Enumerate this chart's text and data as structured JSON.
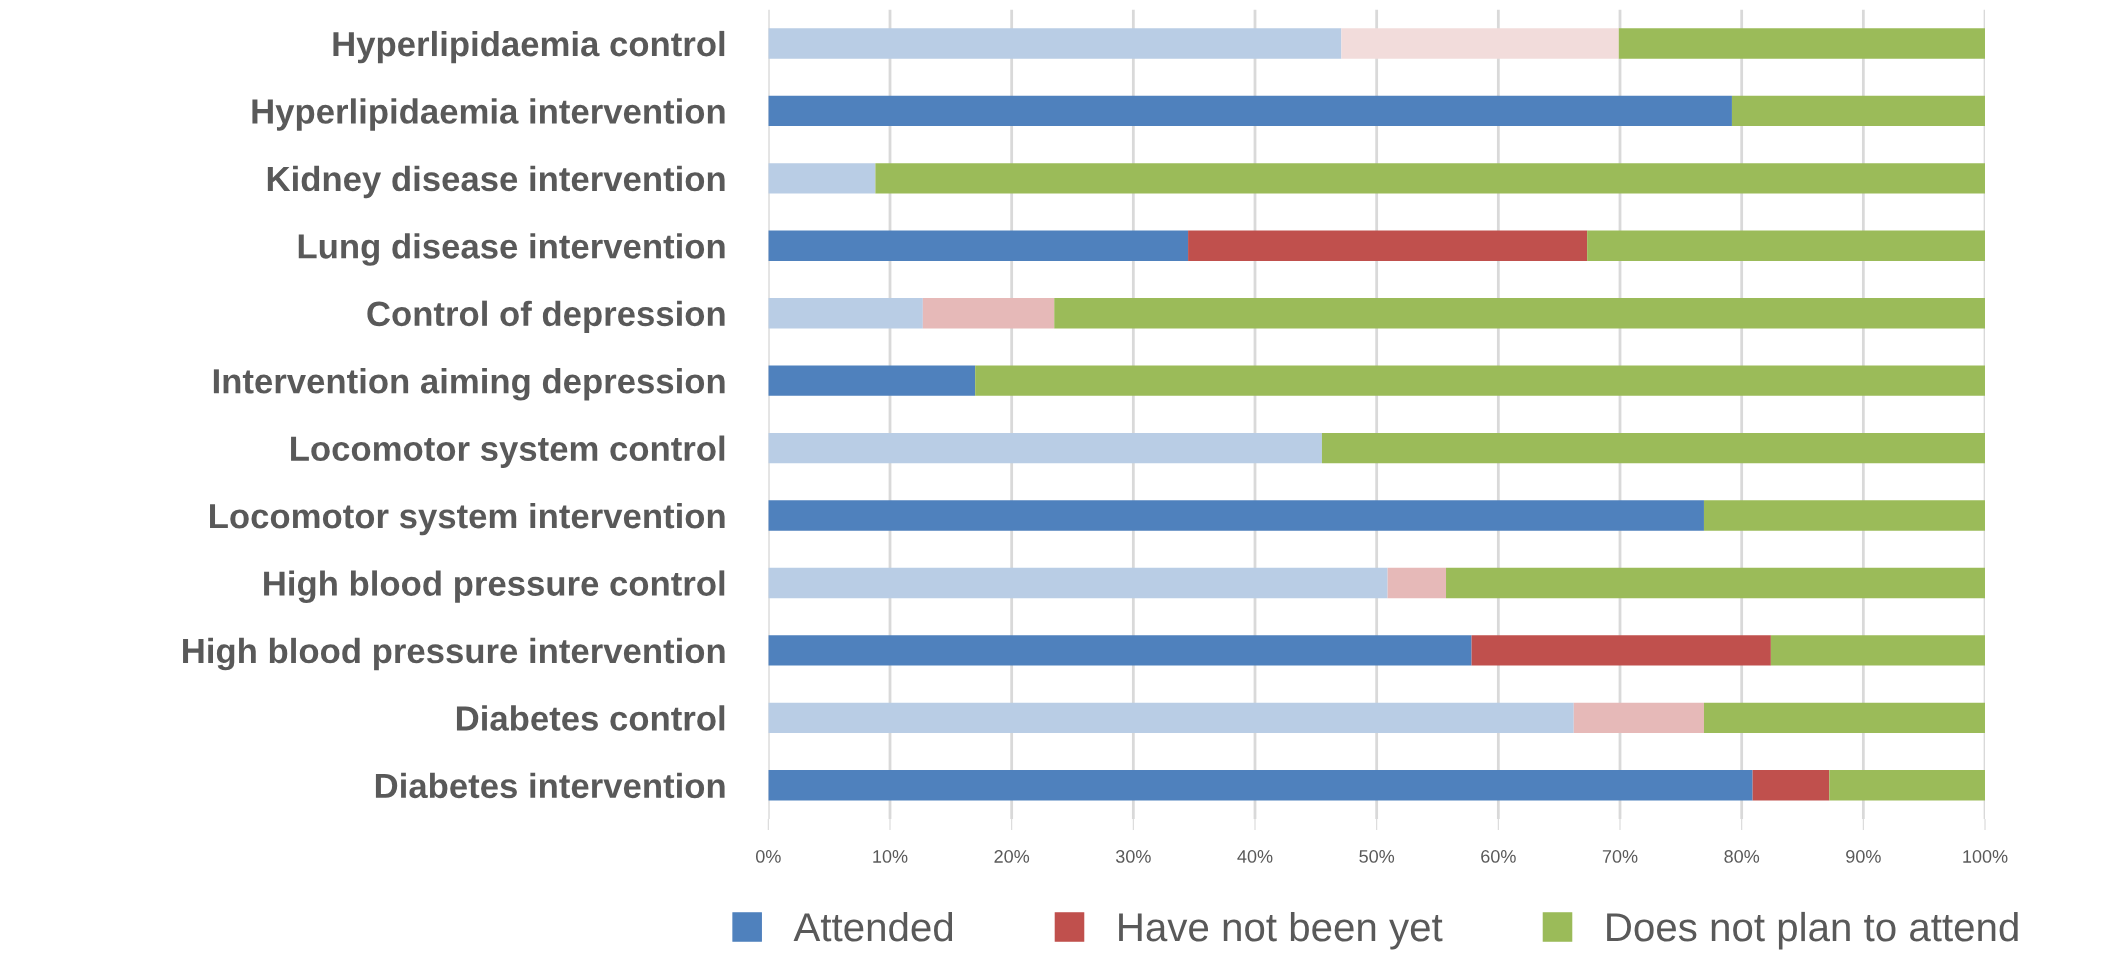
{
  "chart_data": {
    "type": "bar",
    "orientation": "horizontal",
    "stacked": true,
    "categories": [
      "Hyperlipidaemia control",
      "Hyperlipidaemia intervention",
      "Kidney disease intervention",
      "Lung disease intervention",
      "Control of depression",
      "Intervention aiming depression",
      "Locomotor system control",
      "Locomotor system intervention",
      "High blood pressure control",
      "High blood pressure intervention",
      "Diabetes control",
      "Diabetes intervention"
    ],
    "series": [
      {
        "name": "Attended",
        "color": "#4f81bd",
        "colors": [
          "#b9cde5",
          "#4f81bd",
          "#b9cde5",
          "#4f81bd",
          "#b9cde5",
          "#4f81bd",
          "#b9cde5",
          "#4f81bd",
          "#b9cde5",
          "#4f81bd",
          "#b9cde5",
          "#4f81bd"
        ],
        "values": [
          47.1,
          79.2,
          8.8,
          34.5,
          12.7,
          17.0,
          45.5,
          76.9,
          50.9,
          57.8,
          66.2,
          80.9
        ]
      },
      {
        "name": "Have not been yet",
        "color": "#c0504d",
        "colors": [
          "#f2dcdb",
          "#c0504d",
          "#e6b9b8",
          "#c0504d",
          "#e6b9b8",
          "#c0504d",
          "#e6b9b8",
          "#c0504d",
          "#e6b9b8",
          "#c0504d",
          "#e6b9b8",
          "#c0504d"
        ],
        "values": [
          22.8,
          0,
          0,
          32.8,
          10.8,
          0,
          0,
          0,
          4.8,
          24.6,
          10.7,
          6.3
        ]
      },
      {
        "name": "Does not plan to attend",
        "color": "#9bbb59",
        "values": [
          30.1,
          20.8,
          91.2,
          32.7,
          76.5,
          83.0,
          54.5,
          23.1,
          44.3,
          17.6,
          23.1,
          12.8
        ]
      }
    ],
    "xlim": [
      0,
      100
    ],
    "xticks": [
      {
        "value": 0,
        "label": "0%"
      },
      {
        "value": 10,
        "label": "10%"
      },
      {
        "value": 20,
        "label": "20%"
      },
      {
        "value": 30,
        "label": "30%"
      },
      {
        "value": 40,
        "label": "40%"
      },
      {
        "value": 50,
        "label": "50%"
      },
      {
        "value": 60,
        "label": "60%"
      },
      {
        "value": 70,
        "label": "70%"
      },
      {
        "value": 80,
        "label": "80%"
      },
      {
        "value": 90,
        "label": "90%"
      },
      {
        "value": 100,
        "label": "100%"
      }
    ],
    "grid": "x",
    "legend": "bottom"
  }
}
